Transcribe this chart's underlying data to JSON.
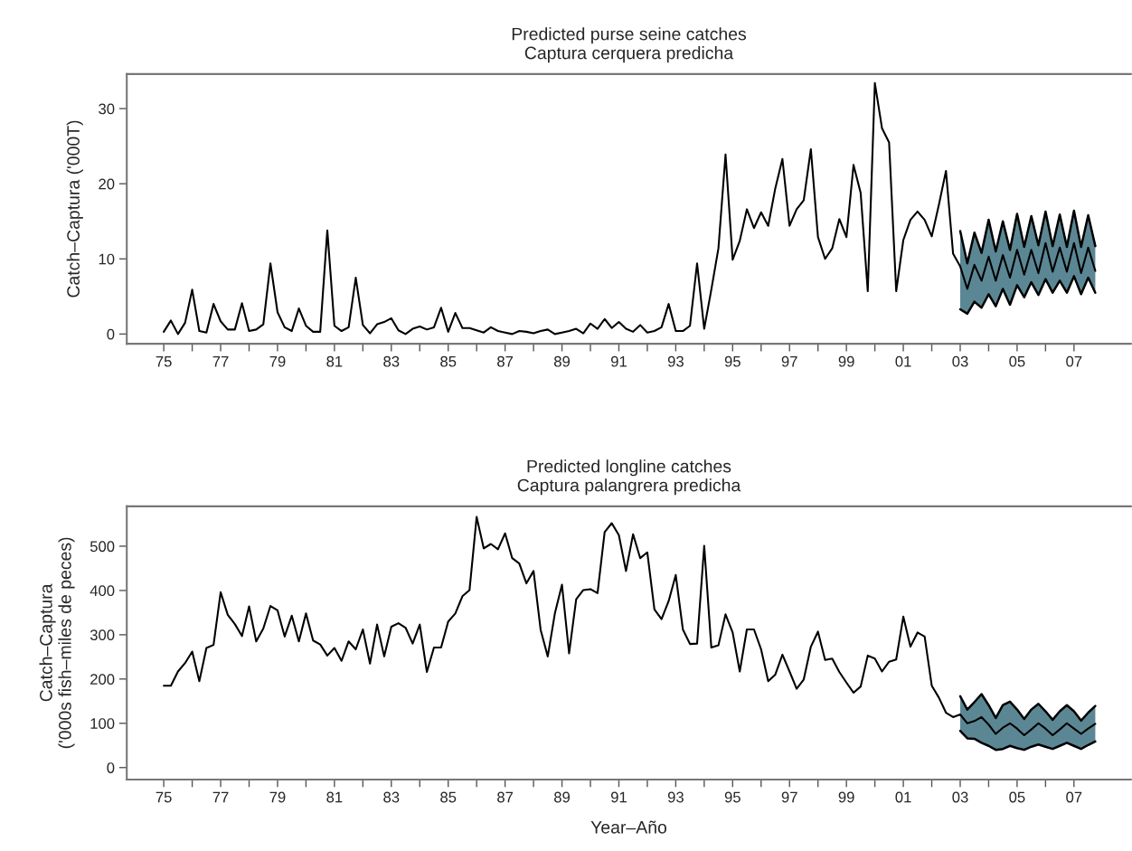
{
  "chart_data": [
    {
      "type": "line",
      "title": "Predicted purse seine catches\nCaptura cerquera predicha",
      "ylabel": "Catch–Captura ('000T)",
      "x": [
        1975,
        1975.25,
        1975.5,
        1975.75,
        1976,
        1976.25,
        1976.5,
        1976.75,
        1977,
        1977.25,
        1977.5,
        1977.75,
        1978,
        1978.25,
        1978.5,
        1978.75,
        1979,
        1979.25,
        1979.5,
        1979.75,
        1980,
        1980.25,
        1980.5,
        1980.75,
        1981,
        1981.25,
        1981.5,
        1981.75,
        1982,
        1982.25,
        1982.5,
        1982.75,
        1983,
        1983.25,
        1983.5,
        1983.75,
        1984,
        1984.25,
        1984.5,
        1984.75,
        1985,
        1985.25,
        1985.5,
        1985.75,
        1986,
        1986.25,
        1986.5,
        1986.75,
        1987,
        1987.25,
        1987.5,
        1987.75,
        1988,
        1988.25,
        1988.5,
        1988.75,
        1989,
        1989.25,
        1989.5,
        1989.75,
        1990,
        1990.25,
        1990.5,
        1990.75,
        1991,
        1991.25,
        1991.5,
        1991.75,
        1992,
        1992.25,
        1992.5,
        1992.75,
        1993,
        1993.25,
        1993.5,
        1993.75,
        1994,
        1994.25,
        1994.5,
        1994.75,
        1995,
        1995.25,
        1995.5,
        1995.75,
        1996,
        1996.25,
        1996.5,
        1996.75,
        1997,
        1997.25,
        1997.5,
        1997.75,
        1998,
        1998.25,
        1998.5,
        1998.75,
        1999,
        1999.25,
        1999.5,
        1999.75,
        2000,
        2000.25,
        2000.5,
        2000.75,
        2001,
        2001.25,
        2001.5,
        2001.75,
        2002,
        2002.25,
        2002.5,
        2002.75,
        2003,
        2003.25,
        2003.5,
        2003.75,
        2004,
        2004.25,
        2004.5,
        2004.75,
        2005,
        2005.25,
        2005.5,
        2005.75,
        2006,
        2006.25,
        2006.5,
        2006.75,
        2007,
        2007.25,
        2007.5,
        2007.75
      ],
      "series": [
        {
          "type": "line",
          "color": "#000000",
          "x": [
            2003,
            2003.25,
            2003.5,
            2003.75,
            2004,
            2004.25,
            2004.5,
            2004.75,
            2005,
            2005.25,
            2005.5,
            2005.75,
            2006,
            2006.25,
            2006.5,
            2006.75,
            2007,
            2007.25,
            2007.5,
            2007.75
          ],
          "values": [
            3.3,
            2.7,
            4.3,
            3.5,
            5.3,
            3.7,
            6.0,
            3.9,
            6.5,
            4.9,
            6.9,
            5.2,
            7.3,
            5.5,
            7.1,
            5.5,
            7.7,
            5.3,
            7.5,
            5.5
          ]
        },
        {
          "type": "line",
          "color": "#000000",
          "x": [
            2003,
            2003.25,
            2003.5,
            2003.75,
            2004,
            2004.25,
            2004.5,
            2004.75,
            2005,
            2005.25,
            2005.5,
            2005.75,
            2006,
            2006.25,
            2006.5,
            2006.75,
            2007,
            2007.25,
            2007.5,
            2007.75
          ],
          "values": [
            13.7,
            9.4,
            13.5,
            10.8,
            15.2,
            11.0,
            15.0,
            11.2,
            16.0,
            11.6,
            15.7,
            11.8,
            16.3,
            11.7,
            15.9,
            11.6,
            16.4,
            11.6,
            15.8,
            11.7
          ]
        },
        {
          "color": "#000000",
          "values": [
            0.3,
            1.8,
            0.0,
            1.5,
            5.9,
            0.4,
            0.2,
            4.0,
            1.7,
            0.6,
            0.6,
            4.1,
            0.4,
            0.6,
            1.3,
            9.4,
            2.9,
            0.9,
            0.4,
            3.4,
            1.1,
            0.3,
            0.3,
            13.8,
            1.1,
            0.4,
            0.9,
            7.5,
            1.2,
            0.1,
            1.3,
            1.6,
            2.1,
            0.5,
            0.0,
            0.7,
            1.0,
            0.6,
            0.9,
            3.5,
            0.3,
            2.8,
            0.8,
            0.8,
            0.5,
            0.2,
            0.9,
            0.4,
            0.2,
            0.0,
            0.4,
            0.3,
            0.1,
            0.4,
            0.6,
            0.0,
            0.2,
            0.4,
            0.7,
            0.1,
            1.4,
            0.7,
            2.0,
            0.8,
            1.6,
            0.7,
            0.3,
            1.2,
            0.2,
            0.4,
            0.9,
            4.0,
            0.4,
            0.4,
            1.1,
            9.4,
            0.7,
            5.9,
            11.4,
            23.9,
            9.9,
            12.4,
            16.6,
            14.1,
            16.2,
            14.4,
            19.4,
            23.3,
            14.4,
            16.6,
            17.8,
            24.6,
            12.9,
            10.0,
            11.4,
            15.3,
            12.9,
            22.5,
            18.8,
            5.7,
            33.4,
            27.4,
            25.5,
            5.7,
            12.5,
            15.2,
            16.3,
            15.2,
            13.0,
            17.2,
            21.7,
            10.7,
            9.0,
            6.0,
            9.2,
            7.1,
            10.3,
            7.1,
            10.5,
            7.5,
            11.2,
            7.9,
            11.2,
            8.1,
            12.1,
            8.3,
            11.5,
            8.3,
            12.1,
            8.1,
            11.5,
            8.4
          ],
          "lower": [
            null,
            null,
            null,
            null,
            null,
            null,
            null,
            null,
            null,
            null,
            null,
            null,
            null,
            null,
            null,
            null,
            null,
            null,
            null,
            null,
            null,
            null,
            null,
            null,
            null,
            null,
            null,
            null,
            null,
            null,
            null,
            null,
            null,
            null,
            null,
            null,
            null,
            null,
            null,
            null,
            null,
            null,
            null,
            null,
            null,
            null,
            null,
            null,
            null,
            null,
            null,
            null,
            null,
            null,
            null,
            null,
            null,
            null,
            null,
            null,
            null,
            null,
            null,
            null,
            null,
            null,
            null,
            null,
            null,
            null,
            null,
            null,
            null,
            null,
            null,
            null,
            null,
            null,
            null,
            null,
            null,
            null,
            null,
            null,
            null,
            null,
            null,
            null,
            null,
            null,
            null,
            null,
            null,
            null,
            null,
            null,
            null,
            null,
            null,
            null,
            null,
            null,
            null,
            null,
            null,
            null,
            null,
            null,
            null,
            null,
            null,
            null,
            3.3,
            2.7,
            4.3,
            3.5,
            5.3,
            3.7,
            6.0,
            3.9,
            6.5,
            4.9,
            6.9,
            5.2,
            7.3,
            5.5,
            7.1,
            5.5,
            7.7,
            5.3,
            7.5,
            5.5
          ],
          "upper": [
            null,
            null,
            null,
            null,
            null,
            null,
            null,
            null,
            null,
            null,
            null,
            null,
            null,
            null,
            null,
            null,
            null,
            null,
            null,
            null,
            null,
            null,
            null,
            null,
            null,
            null,
            null,
            null,
            null,
            null,
            null,
            null,
            null,
            null,
            null,
            null,
            null,
            null,
            null,
            null,
            null,
            null,
            null,
            null,
            null,
            null,
            null,
            null,
            null,
            null,
            null,
            null,
            null,
            null,
            null,
            null,
            null,
            null,
            null,
            null,
            null,
            null,
            null,
            null,
            null,
            null,
            null,
            null,
            null,
            null,
            null,
            null,
            null,
            null,
            null,
            null,
            null,
            null,
            null,
            null,
            null,
            null,
            null,
            null,
            null,
            null,
            null,
            null,
            null,
            null,
            null,
            null,
            null,
            null,
            null,
            null,
            null,
            null,
            null,
            null,
            null,
            null,
            null,
            null,
            null,
            null,
            null,
            null,
            null,
            null,
            null,
            null,
            13.7,
            9.4,
            13.5,
            10.8,
            15.2,
            11.0,
            15.0,
            11.2,
            16.0,
            11.6,
            15.7,
            11.8,
            16.3,
            11.7,
            15.9,
            11.6,
            16.4,
            11.6,
            15.8,
            11.7
          ]
        }
      ],
      "xlim": [
        1973.7,
        2009.0
      ],
      "ylim": [
        -1.3,
        34.6
      ],
      "yticks": [
        0,
        10,
        20,
        30
      ],
      "xticks": [
        {
          "value": 1975,
          "label": "75"
        },
        {
          "value": 1976,
          "label": null
        },
        {
          "value": 1977,
          "label": "77"
        },
        {
          "value": 1978,
          "label": null
        },
        {
          "value": 1979,
          "label": "79"
        },
        {
          "value": 1980,
          "label": null
        },
        {
          "value": 1981,
          "label": "81"
        },
        {
          "value": 1982,
          "label": null
        },
        {
          "value": 1983,
          "label": "83"
        },
        {
          "value": 1984,
          "label": null
        },
        {
          "value": 1985,
          "label": "85"
        },
        {
          "value": 1986,
          "label": null
        },
        {
          "value": 1987,
          "label": "87"
        },
        {
          "value": 1988,
          "label": null
        },
        {
          "value": 1989,
          "label": "89"
        },
        {
          "value": 1990,
          "label": null
        },
        {
          "value": 1991,
          "label": "91"
        },
        {
          "value": 1992,
          "label": null
        },
        {
          "value": 1993,
          "label": "93"
        },
        {
          "value": 1994,
          "label": null
        },
        {
          "value": 1995,
          "label": "95"
        },
        {
          "value": 1996,
          "label": null
        },
        {
          "value": 1997,
          "label": "97"
        },
        {
          "value": 1998,
          "label": null
        },
        {
          "value": 1999,
          "label": "99"
        },
        {
          "value": 2000,
          "label": null
        },
        {
          "value": 2001,
          "label": "01"
        },
        {
          "value": 2002,
          "label": null
        },
        {
          "value": 2003,
          "label": "03"
        },
        {
          "value": 2004,
          "label": null
        },
        {
          "value": 2005,
          "label": "05"
        },
        {
          "value": 2006,
          "label": null
        },
        {
          "value": 2007,
          "label": "07"
        }
      ]
    },
    {
      "type": "line",
      "title": "Predicted longline catches\nCaptura palangrera predicha",
      "ylabel": "Catch–Captura\n('000s fish–miles de peces)",
      "xlabel": "Year–Año",
      "x": [
        1975,
        1975.25,
        1975.5,
        1975.75,
        1976,
        1976.25,
        1976.5,
        1976.75,
        1977,
        1977.25,
        1977.5,
        1977.75,
        1978,
        1978.25,
        1978.5,
        1978.75,
        1979,
        1979.25,
        1979.5,
        1979.75,
        1980,
        1980.25,
        1980.5,
        1980.75,
        1981,
        1981.25,
        1981.5,
        1981.75,
        1982,
        1982.25,
        1982.5,
        1982.75,
        1983,
        1983.25,
        1983.5,
        1983.75,
        1984,
        1984.25,
        1984.5,
        1984.75,
        1985,
        1985.25,
        1985.5,
        1985.75,
        1986,
        1986.25,
        1986.5,
        1986.75,
        1987,
        1987.25,
        1987.5,
        1987.75,
        1988,
        1988.25,
        1988.5,
        1988.75,
        1989,
        1989.25,
        1989.5,
        1989.75,
        1990,
        1990.25,
        1990.5,
        1990.75,
        1991,
        1991.25,
        1991.5,
        1991.75,
        1992,
        1992.25,
        1992.5,
        1992.75,
        1993,
        1993.25,
        1993.5,
        1993.75,
        1994,
        1994.25,
        1994.5,
        1994.75,
        1995,
        1995.25,
        1995.5,
        1995.75,
        1996,
        1996.25,
        1996.5,
        1996.75,
        1997,
        1997.25,
        1997.5,
        1997.75,
        1998,
        1998.25,
        1998.5,
        1998.75,
        1999,
        1999.25,
        1999.5,
        1999.75,
        2000,
        2000.25,
        2000.5,
        2000.75,
        2001,
        2001.25,
        2001.5,
        2001.75,
        2002,
        2002.25,
        2002.5,
        2002.75,
        2003,
        2003.25,
        2003.5,
        2003.75,
        2004,
        2004.25,
        2004.5,
        2004.75,
        2005,
        2005.25,
        2005.5,
        2005.75,
        2006,
        2006.25,
        2006.5,
        2006.75,
        2007,
        2007.25,
        2007.5,
        2007.75
      ],
      "series": [
        {
          "type": "line",
          "color": "#000000",
          "x": [
            2003,
            2003.25,
            2003.5,
            2003.75,
            2004,
            2004.25,
            2004.5,
            2004.75,
            2005,
            2005.25,
            2005.5,
            2005.75,
            2006,
            2006.25,
            2006.5,
            2006.75,
            2007,
            2007.25,
            2007.5,
            2007.75
          ],
          "values": [
            83,
            66,
            65,
            56,
            49,
            40,
            42,
            49,
            44,
            40,
            47,
            52,
            47,
            42,
            49,
            56,
            49,
            42,
            51,
            59
          ]
        },
        {
          "type": "line",
          "color": "#000000",
          "x": [
            2003,
            2003.25,
            2003.5,
            2003.75,
            2004,
            2004.25,
            2004.5,
            2004.75,
            2005,
            2005.25,
            2005.5,
            2005.75,
            2006,
            2006.25,
            2006.5,
            2006.75,
            2007,
            2007.25,
            2007.5,
            2007.75
          ],
          "values": [
            161,
            131,
            148,
            166,
            141,
            112,
            141,
            149,
            131,
            110,
            131,
            144,
            127,
            108,
            127,
            141,
            127,
            106,
            124,
            139
          ]
        },
        {
          "color": "#000000",
          "values": [
            185,
            185,
            217,
            236,
            262,
            195,
            270,
            277,
            396,
            345,
            324,
            297,
            364,
            285,
            314,
            365,
            355,
            296,
            343,
            285,
            348,
            287,
            278,
            253,
            270,
            241,
            285,
            267,
            312,
            235,
            323,
            251,
            318,
            326,
            316,
            280,
            323,
            216,
            271,
            271,
            330,
            348,
            387,
            401,
            566,
            495,
            505,
            493,
            529,
            473,
            461,
            416,
            444,
            311,
            251,
            348,
            413,
            258,
            380,
            401,
            403,
            394,
            532,
            552,
            525,
            444,
            527,
            473,
            486,
            357,
            335,
            376,
            435,
            312,
            279,
            280,
            501,
            271,
            276,
            346,
            305,
            217,
            312,
            312,
            267,
            195,
            210,
            255,
            217,
            178,
            199,
            273,
            307,
            243,
            246,
            216,
            192,
            169,
            183,
            253,
            246,
            217,
            239,
            244,
            341,
            273,
            305,
            296,
            185,
            158,
            124,
            114,
            120,
            100,
            105,
            114,
            97,
            76,
            90,
            100,
            88,
            73,
            86,
            100,
            88,
            73,
            86,
            100,
            88,
            76,
            88,
            99
          ],
          "lower": [
            null,
            null,
            null,
            null,
            null,
            null,
            null,
            null,
            null,
            null,
            null,
            null,
            null,
            null,
            null,
            null,
            null,
            null,
            null,
            null,
            null,
            null,
            null,
            null,
            null,
            null,
            null,
            null,
            null,
            null,
            null,
            null,
            null,
            null,
            null,
            null,
            null,
            null,
            null,
            null,
            null,
            null,
            null,
            null,
            null,
            null,
            null,
            null,
            null,
            null,
            null,
            null,
            null,
            null,
            null,
            null,
            null,
            null,
            null,
            null,
            null,
            null,
            null,
            null,
            null,
            null,
            null,
            null,
            null,
            null,
            null,
            null,
            null,
            null,
            null,
            null,
            null,
            null,
            null,
            null,
            null,
            null,
            null,
            null,
            null,
            null,
            null,
            null,
            null,
            null,
            null,
            null,
            null,
            null,
            null,
            null,
            null,
            null,
            null,
            null,
            null,
            null,
            null,
            null,
            null,
            null,
            null,
            null,
            null,
            null,
            null,
            null,
            83,
            66,
            65,
            56,
            49,
            40,
            42,
            49,
            44,
            40,
            47,
            52,
            47,
            42,
            49,
            56,
            49,
            42,
            51,
            59
          ],
          "upper": [
            null,
            null,
            null,
            null,
            null,
            null,
            null,
            null,
            null,
            null,
            null,
            null,
            null,
            null,
            null,
            null,
            null,
            null,
            null,
            null,
            null,
            null,
            null,
            null,
            null,
            null,
            null,
            null,
            null,
            null,
            null,
            null,
            null,
            null,
            null,
            null,
            null,
            null,
            null,
            null,
            null,
            null,
            null,
            null,
            null,
            null,
            null,
            null,
            null,
            null,
            null,
            null,
            null,
            null,
            null,
            null,
            null,
            null,
            null,
            null,
            null,
            null,
            null,
            null,
            null,
            null,
            null,
            null,
            null,
            null,
            null,
            null,
            null,
            null,
            null,
            null,
            null,
            null,
            null,
            null,
            null,
            null,
            null,
            null,
            null,
            null,
            null,
            null,
            null,
            null,
            null,
            null,
            null,
            null,
            null,
            null,
            null,
            null,
            null,
            null,
            null,
            null,
            null,
            null,
            null,
            null,
            null,
            null,
            null,
            null,
            null,
            null,
            161,
            131,
            148,
            166,
            141,
            112,
            141,
            149,
            131,
            110,
            131,
            144,
            127,
            108,
            127,
            141,
            127,
            106,
            124,
            139
          ]
        }
      ],
      "xlim": [
        1973.7,
        2009.0
      ],
      "ylim": [
        -27,
        590
      ],
      "yticks": [
        0,
        100,
        200,
        300,
        400,
        500
      ],
      "xticks": [
        {
          "value": 1975,
          "label": "75"
        },
        {
          "value": 1976,
          "label": null
        },
        {
          "value": 1977,
          "label": "77"
        },
        {
          "value": 1978,
          "label": null
        },
        {
          "value": 1979,
          "label": "79"
        },
        {
          "value": 1980,
          "label": null
        },
        {
          "value": 1981,
          "label": "81"
        },
        {
          "value": 1982,
          "label": null
        },
        {
          "value": 1983,
          "label": "83"
        },
        {
          "value": 1984,
          "label": null
        },
        {
          "value": 1985,
          "label": "85"
        },
        {
          "value": 1986,
          "label": null
        },
        {
          "value": 1987,
          "label": "87"
        },
        {
          "value": 1988,
          "label": null
        },
        {
          "value": 1989,
          "label": "89"
        },
        {
          "value": 1990,
          "label": null
        },
        {
          "value": 1991,
          "label": "91"
        },
        {
          "value": 1992,
          "label": null
        },
        {
          "value": 1993,
          "label": "93"
        },
        {
          "value": 1994,
          "label": null
        },
        {
          "value": 1995,
          "label": "95"
        },
        {
          "value": 1996,
          "label": null
        },
        {
          "value": 1997,
          "label": "97"
        },
        {
          "value": 1998,
          "label": null
        },
        {
          "value": 1999,
          "label": "99"
        },
        {
          "value": 2000,
          "label": null
        },
        {
          "value": 2001,
          "label": "01"
        },
        {
          "value": 2002,
          "label": null
        },
        {
          "value": 2003,
          "label": "03"
        },
        {
          "value": 2004,
          "label": null
        },
        {
          "value": 2005,
          "label": "05"
        },
        {
          "value": 2006,
          "label": null
        },
        {
          "value": 2007,
          "label": "07"
        }
      ]
    }
  ]
}
